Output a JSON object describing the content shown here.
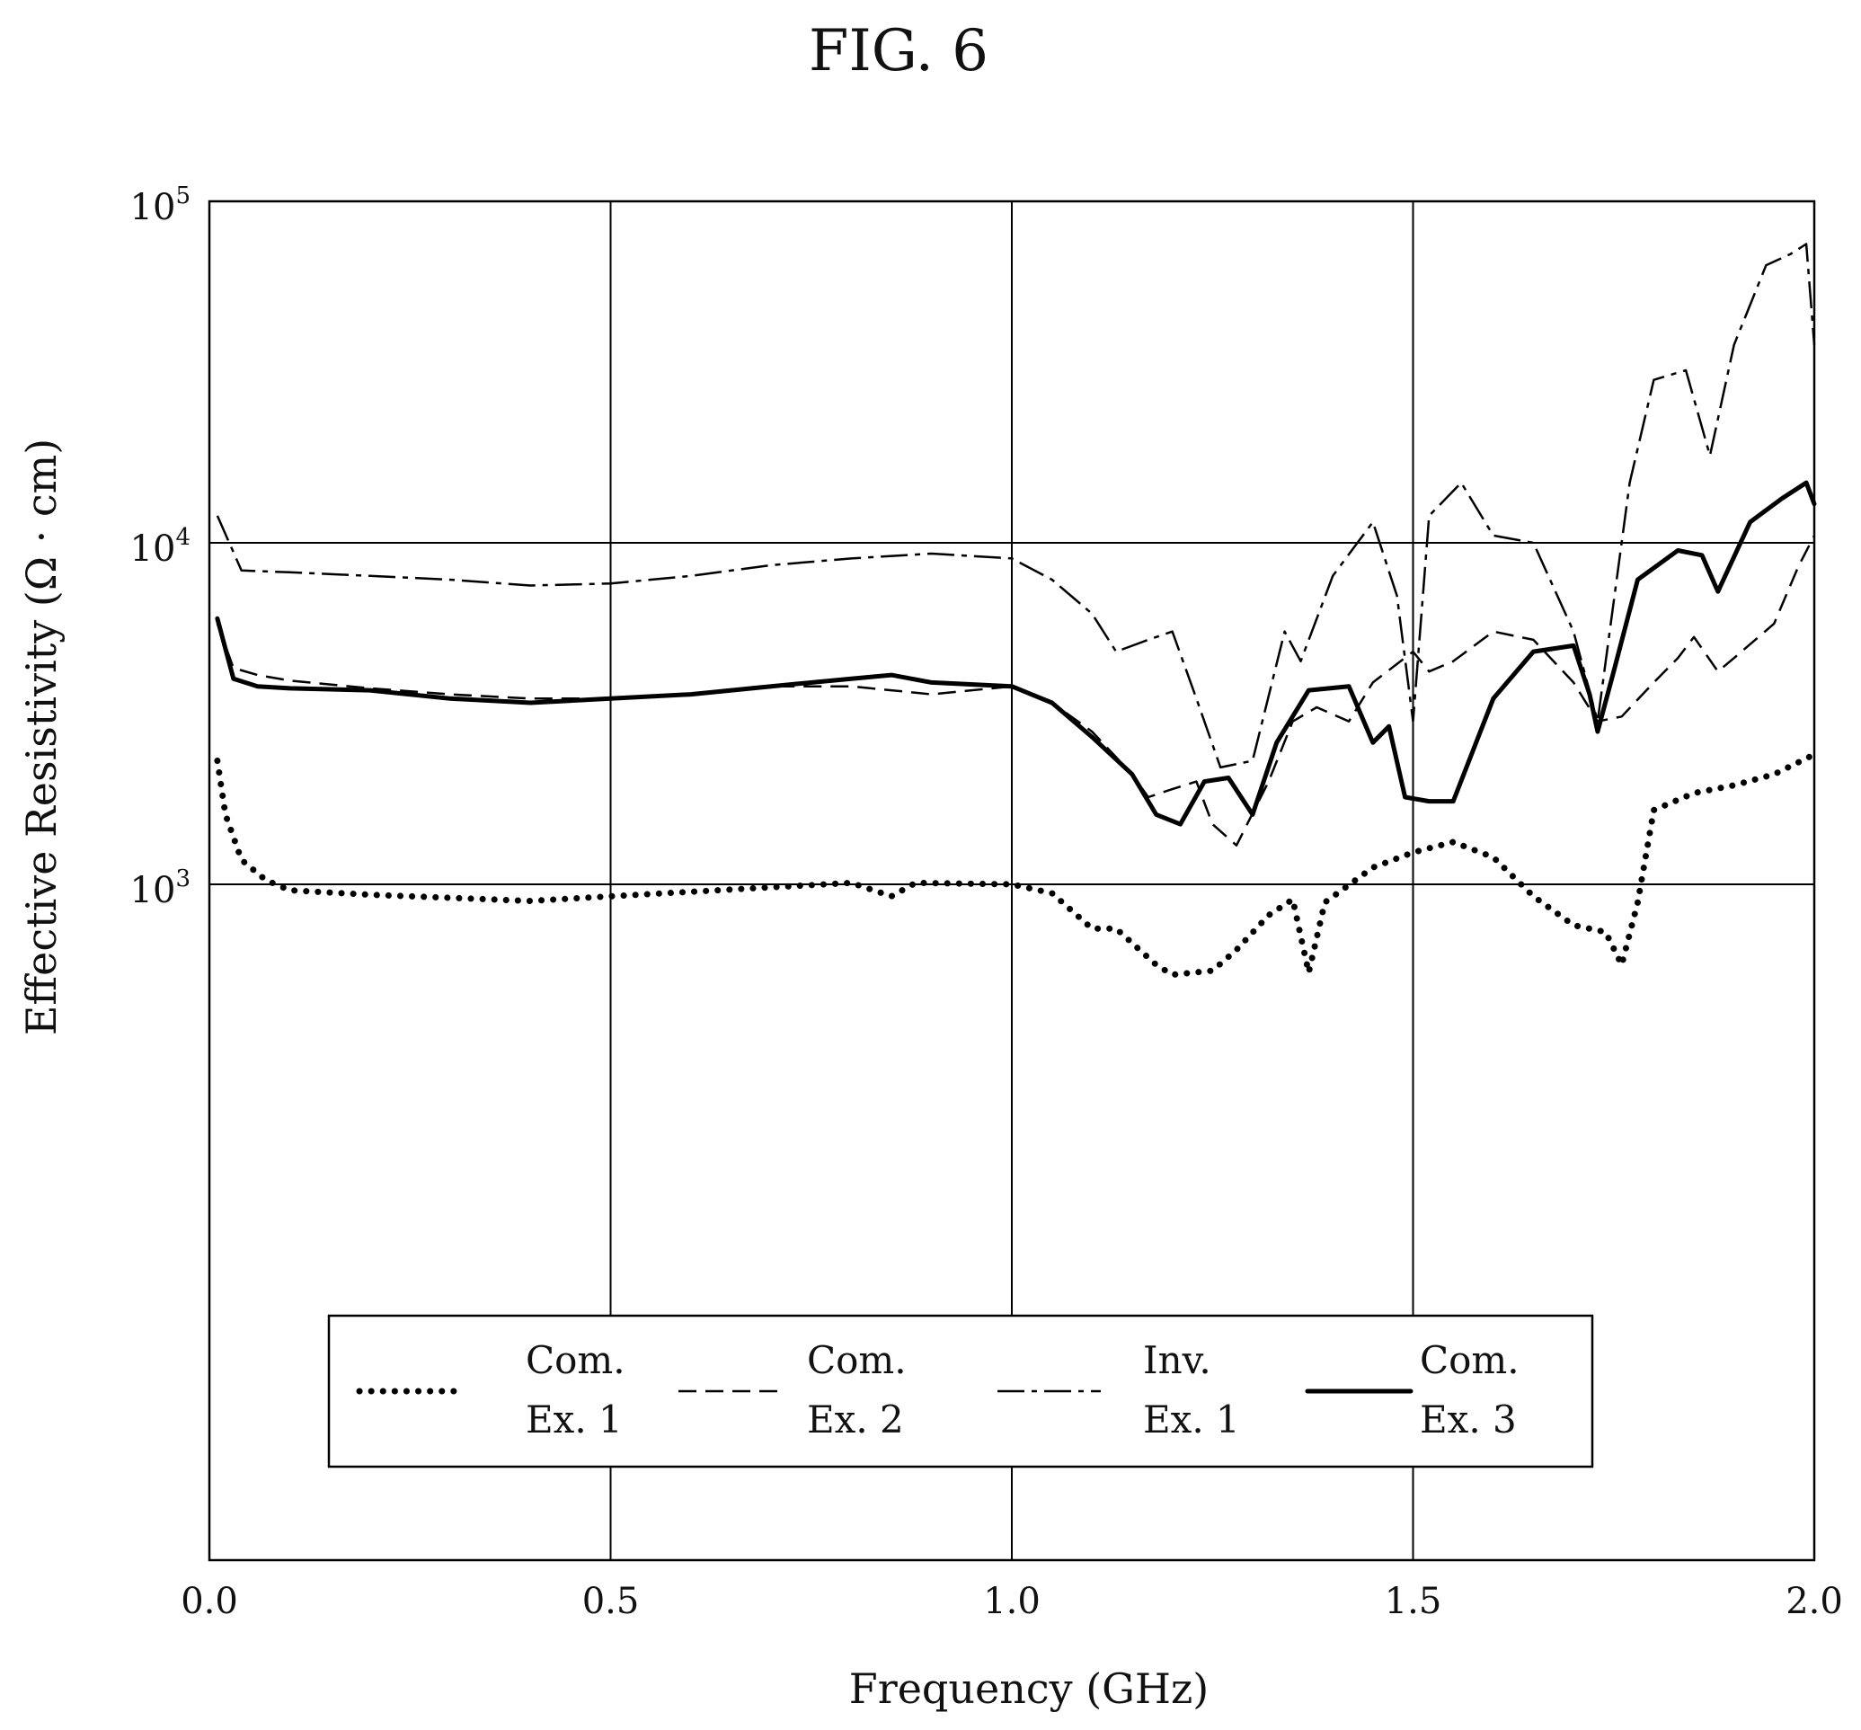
{
  "chart_data": {
    "type": "line",
    "title": "FIG. 6",
    "xlabel": "Frequency (GHz)",
    "ylabel": "Effective Resistivity (Ω · cm)",
    "xlim": [
      0.0,
      2.0
    ],
    "ylim_log10": [
      2,
      5
    ],
    "y_scale": "log",
    "grid": true,
    "legend_position": "lower-center",
    "x_ticks": [
      {
        "value": 0.0,
        "label": "0.0"
      },
      {
        "value": 0.5,
        "label": "0.5"
      },
      {
        "value": 1.0,
        "label": "1.0"
      },
      {
        "value": 1.5,
        "label": "1.5"
      },
      {
        "value": 2.0,
        "label": "2.0"
      }
    ],
    "y_ticks": [
      {
        "exp": 5,
        "base": "10",
        "sup": "5"
      },
      {
        "exp": 4,
        "base": "10",
        "sup": "4"
      },
      {
        "exp": 3,
        "base": "10",
        "sup": "3"
      }
    ],
    "series": [
      {
        "name": "Com. Ex. 1",
        "legend_lines": [
          "Com.",
          "Ex. 1"
        ],
        "style": "dotted",
        "points": [
          [
            0.01,
            2300
          ],
          [
            0.02,
            1600
          ],
          [
            0.04,
            1180
          ],
          [
            0.07,
            1030
          ],
          [
            0.1,
            980
          ],
          [
            0.2,
            965
          ],
          [
            0.3,
            955
          ],
          [
            0.4,
            945
          ],
          [
            0.5,
            960
          ],
          [
            0.6,
            975
          ],
          [
            0.7,
            990
          ],
          [
            0.8,
            1010
          ],
          [
            0.85,
            960
          ],
          [
            0.88,
            1010
          ],
          [
            1.0,
            1000
          ],
          [
            1.05,
            970
          ],
          [
            1.1,
            860
          ],
          [
            1.13,
            860
          ],
          [
            1.18,
            760
          ],
          [
            1.2,
            735
          ],
          [
            1.25,
            745
          ],
          [
            1.28,
            800
          ],
          [
            1.32,
            900
          ],
          [
            1.35,
            950
          ],
          [
            1.37,
            740
          ],
          [
            1.39,
            940
          ],
          [
            1.45,
            1120
          ],
          [
            1.5,
            1240
          ],
          [
            1.55,
            1330
          ],
          [
            1.6,
            1200
          ],
          [
            1.65,
            960
          ],
          [
            1.7,
            870
          ],
          [
            1.74,
            850
          ],
          [
            1.76,
            760
          ],
          [
            1.78,
            940
          ],
          [
            1.8,
            1650
          ],
          [
            1.85,
            1850
          ],
          [
            1.9,
            1950
          ],
          [
            1.95,
            2100
          ],
          [
            2.0,
            2400
          ]
        ]
      },
      {
        "name": "Com. Ex. 2",
        "legend_lines": [
          "Com.",
          "Ex. 2"
        ],
        "style": "dashed",
        "points": [
          [
            0.01,
            5800
          ],
          [
            0.03,
            4300
          ],
          [
            0.06,
            4100
          ],
          [
            0.1,
            3950
          ],
          [
            0.2,
            3750
          ],
          [
            0.3,
            3600
          ],
          [
            0.4,
            3500
          ],
          [
            0.5,
            3500
          ],
          [
            0.6,
            3600
          ],
          [
            0.7,
            3800
          ],
          [
            0.8,
            3800
          ],
          [
            0.85,
            3700
          ],
          [
            0.9,
            3600
          ],
          [
            1.0,
            3800
          ],
          [
            1.05,
            3400
          ],
          [
            1.1,
            2800
          ],
          [
            1.15,
            2100
          ],
          [
            1.17,
            1800
          ],
          [
            1.2,
            1900
          ],
          [
            1.23,
            2000
          ],
          [
            1.25,
            1500
          ],
          [
            1.28,
            1300
          ],
          [
            1.32,
            2000
          ],
          [
            1.35,
            3000
          ],
          [
            1.38,
            3300
          ],
          [
            1.42,
            3000
          ],
          [
            1.45,
            3900
          ],
          [
            1.5,
            4800
          ],
          [
            1.52,
            4200
          ],
          [
            1.55,
            4500
          ],
          [
            1.6,
            5500
          ],
          [
            1.65,
            5200
          ],
          [
            1.7,
            3900
          ],
          [
            1.73,
            3000
          ],
          [
            1.76,
            3100
          ],
          [
            1.8,
            3900
          ],
          [
            1.83,
            4600
          ],
          [
            1.85,
            5300
          ],
          [
            1.88,
            4200
          ],
          [
            1.9,
            4600
          ],
          [
            1.95,
            5800
          ],
          [
            1.98,
            8500
          ],
          [
            2.0,
            10500
          ]
        ]
      },
      {
        "name": "Inv. Ex. 1",
        "legend_lines": [
          "Inv.",
          "Ex. 1"
        ],
        "style": "dash-dot",
        "points": [
          [
            0.01,
            12000
          ],
          [
            0.04,
            8300
          ],
          [
            0.1,
            8200
          ],
          [
            0.2,
            8000
          ],
          [
            0.3,
            7800
          ],
          [
            0.4,
            7500
          ],
          [
            0.5,
            7600
          ],
          [
            0.6,
            8000
          ],
          [
            0.7,
            8600
          ],
          [
            0.8,
            9000
          ],
          [
            0.9,
            9300
          ],
          [
            1.0,
            9000
          ],
          [
            1.05,
            7800
          ],
          [
            1.1,
            6200
          ],
          [
            1.13,
            4800
          ],
          [
            1.17,
            5200
          ],
          [
            1.2,
            5500
          ],
          [
            1.23,
            3500
          ],
          [
            1.26,
            2200
          ],
          [
            1.3,
            2300
          ],
          [
            1.34,
            5500
          ],
          [
            1.36,
            4500
          ],
          [
            1.4,
            8000
          ],
          [
            1.45,
            11500
          ],
          [
            1.48,
            7000
          ],
          [
            1.5,
            3000
          ],
          [
            1.52,
            12000
          ],
          [
            1.56,
            15000
          ],
          [
            1.6,
            10500
          ],
          [
            1.65,
            10000
          ],
          [
            1.7,
            5500
          ],
          [
            1.73,
            3000
          ],
          [
            1.77,
            15000
          ],
          [
            1.8,
            30000
          ],
          [
            1.84,
            32000
          ],
          [
            1.87,
            18000
          ],
          [
            1.9,
            38000
          ],
          [
            1.94,
            65000
          ],
          [
            1.97,
            70000
          ],
          [
            1.99,
            75000
          ],
          [
            2.0,
            38000
          ]
        ]
      },
      {
        "name": "Com. Ex. 3",
        "legend_lines": [
          "Com.",
          "Ex. 3"
        ],
        "style": "solid",
        "points": [
          [
            0.01,
            6000
          ],
          [
            0.03,
            4000
          ],
          [
            0.06,
            3800
          ],
          [
            0.1,
            3750
          ],
          [
            0.2,
            3700
          ],
          [
            0.3,
            3500
          ],
          [
            0.4,
            3400
          ],
          [
            0.5,
            3500
          ],
          [
            0.6,
            3600
          ],
          [
            0.7,
            3800
          ],
          [
            0.8,
            4000
          ],
          [
            0.85,
            4100
          ],
          [
            0.9,
            3900
          ],
          [
            1.0,
            3800
          ],
          [
            1.05,
            3400
          ],
          [
            1.1,
            2700
          ],
          [
            1.15,
            2100
          ],
          [
            1.18,
            1600
          ],
          [
            1.21,
            1500
          ],
          [
            1.24,
            2000
          ],
          [
            1.27,
            2050
          ],
          [
            1.3,
            1600
          ],
          [
            1.33,
            2600
          ],
          [
            1.37,
            3700
          ],
          [
            1.42,
            3800
          ],
          [
            1.45,
            2600
          ],
          [
            1.47,
            2900
          ],
          [
            1.49,
            1800
          ],
          [
            1.52,
            1750
          ],
          [
            1.55,
            1750
          ],
          [
            1.6,
            3500
          ],
          [
            1.65,
            4800
          ],
          [
            1.7,
            5000
          ],
          [
            1.72,
            3600
          ],
          [
            1.73,
            2800
          ],
          [
            1.75,
            4200
          ],
          [
            1.78,
            7800
          ],
          [
            1.83,
            9500
          ],
          [
            1.86,
            9200
          ],
          [
            1.88,
            7200
          ],
          [
            1.92,
            11500
          ],
          [
            1.96,
            13500
          ],
          [
            1.99,
            15000
          ],
          [
            2.0,
            13000
          ]
        ]
      }
    ]
  }
}
